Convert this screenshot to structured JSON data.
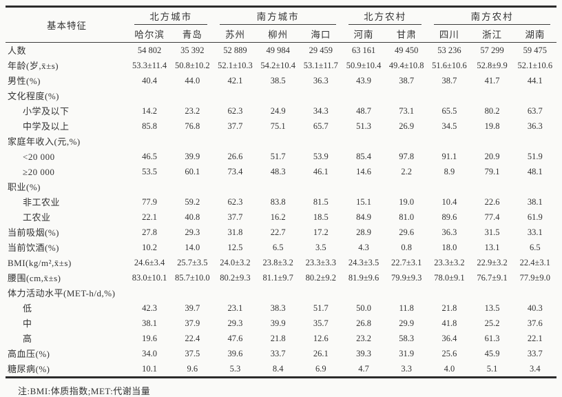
{
  "table": {
    "row_header_label": "基本特征",
    "groups": [
      {
        "label": "北方城市",
        "cities": [
          "哈尔滨",
          "青岛"
        ]
      },
      {
        "label": "南方城市",
        "cities": [
          "苏州",
          "柳州",
          "海口"
        ]
      },
      {
        "label": "北方农村",
        "cities": [
          "河南",
          "甘肃"
        ]
      },
      {
        "label": "南方农村",
        "cities": [
          "四川",
          "浙江",
          "湖南"
        ]
      }
    ],
    "rows": [
      {
        "label": "人数",
        "indent": false,
        "values": [
          "54 802",
          "35 392",
          "52 889",
          "49 984",
          "29 459",
          "63 161",
          "49 450",
          "53 236",
          "57 299",
          "59 475"
        ]
      },
      {
        "label": "年龄(岁,x̄±s)",
        "indent": false,
        "values": [
          "53.3±11.4",
          "50.8±10.2",
          "52.1±10.3",
          "54.2±10.4",
          "53.1±11.7",
          "50.9±10.4",
          "49.4±10.8",
          "51.6±10.6",
          "52.8±9.9",
          "52.1±10.6"
        ]
      },
      {
        "label": "男性(%)",
        "indent": false,
        "values": [
          "40.4",
          "44.0",
          "42.1",
          "38.5",
          "36.3",
          "43.9",
          "38.7",
          "38.7",
          "41.7",
          "44.1"
        ]
      },
      {
        "label": "文化程度(%)",
        "indent": false,
        "values": []
      },
      {
        "label": "小学及以下",
        "indent": true,
        "values": [
          "14.2",
          "23.2",
          "62.3",
          "24.9",
          "34.3",
          "48.7",
          "73.1",
          "65.5",
          "80.2",
          "63.7"
        ]
      },
      {
        "label": "中学及以上",
        "indent": true,
        "values": [
          "85.8",
          "76.8",
          "37.7",
          "75.1",
          "65.7",
          "51.3",
          "26.9",
          "34.5",
          "19.8",
          "36.3"
        ]
      },
      {
        "label": "家庭年收入(元,%)",
        "indent": false,
        "values": []
      },
      {
        "label": "<20 000",
        "indent": true,
        "values": [
          "46.5",
          "39.9",
          "26.6",
          "51.7",
          "53.9",
          "85.4",
          "97.8",
          "91.1",
          "20.9",
          "51.9"
        ]
      },
      {
        "label": "≥20 000",
        "indent": true,
        "values": [
          "53.5",
          "60.1",
          "73.4",
          "48.3",
          "46.1",
          "14.6",
          "2.2",
          "8.9",
          "79.1",
          "48.1"
        ]
      },
      {
        "label": "职业(%)",
        "indent": false,
        "values": []
      },
      {
        "label": "非工农业",
        "indent": true,
        "values": [
          "77.9",
          "59.2",
          "62.3",
          "83.8",
          "81.5",
          "15.1",
          "19.0",
          "10.4",
          "22.6",
          "38.1"
        ]
      },
      {
        "label": "工农业",
        "indent": true,
        "values": [
          "22.1",
          "40.8",
          "37.7",
          "16.2",
          "18.5",
          "84.9",
          "81.0",
          "89.6",
          "77.4",
          "61.9"
        ]
      },
      {
        "label": "当前吸烟(%)",
        "indent": false,
        "values": [
          "27.8",
          "29.3",
          "31.8",
          "22.7",
          "17.2",
          "28.9",
          "29.6",
          "36.3",
          "31.5",
          "33.1"
        ]
      },
      {
        "label": "当前饮酒(%)",
        "indent": false,
        "values": [
          "10.2",
          "14.0",
          "12.5",
          "6.5",
          "3.5",
          "4.3",
          "0.8",
          "18.0",
          "13.1",
          "6.5"
        ]
      },
      {
        "label": "BMI(kg/m²,x̄±s)",
        "indent": false,
        "values": [
          "24.6±3.4",
          "25.7±3.5",
          "24.0±3.2",
          "23.8±3.2",
          "23.3±3.3",
          "24.3±3.5",
          "22.7±3.1",
          "23.3±3.2",
          "22.9±3.2",
          "22.4±3.1"
        ]
      },
      {
        "label": "腰围(cm,x̄±s)",
        "indent": false,
        "values": [
          "83.0±10.1",
          "85.7±10.0",
          "80.2±9.3",
          "81.1±9.7",
          "80.2±9.2",
          "81.9±9.6",
          "79.9±9.3",
          "78.0±9.1",
          "76.7±9.1",
          "77.9±9.0"
        ]
      },
      {
        "label": "体力活动水平(MET-h/d,%)",
        "indent": false,
        "values": []
      },
      {
        "label": "低",
        "indent": true,
        "values": [
          "42.3",
          "39.7",
          "23.1",
          "38.3",
          "51.7",
          "50.0",
          "11.8",
          "21.8",
          "13.5",
          "40.3"
        ]
      },
      {
        "label": "中",
        "indent": true,
        "values": [
          "38.1",
          "37.9",
          "29.3",
          "39.9",
          "35.7",
          "26.8",
          "29.9",
          "41.8",
          "25.2",
          "37.6"
        ]
      },
      {
        "label": "高",
        "indent": true,
        "values": [
          "19.6",
          "22.4",
          "47.6",
          "21.8",
          "12.6",
          "23.2",
          "58.3",
          "36.4",
          "61.3",
          "22.1"
        ]
      },
      {
        "label": "高血压(%)",
        "indent": false,
        "values": [
          "34.0",
          "37.5",
          "39.6",
          "33.7",
          "26.1",
          "39.3",
          "31.9",
          "25.6",
          "45.9",
          "33.7"
        ]
      },
      {
        "label": "糖尿病(%)",
        "indent": false,
        "values": [
          "10.1",
          "9.6",
          "5.3",
          "8.4",
          "6.9",
          "4.7",
          "3.3",
          "4.0",
          "5.1",
          "3.4"
        ]
      }
    ],
    "note": "注:BMI:体质指数;MET:代谢当量"
  }
}
